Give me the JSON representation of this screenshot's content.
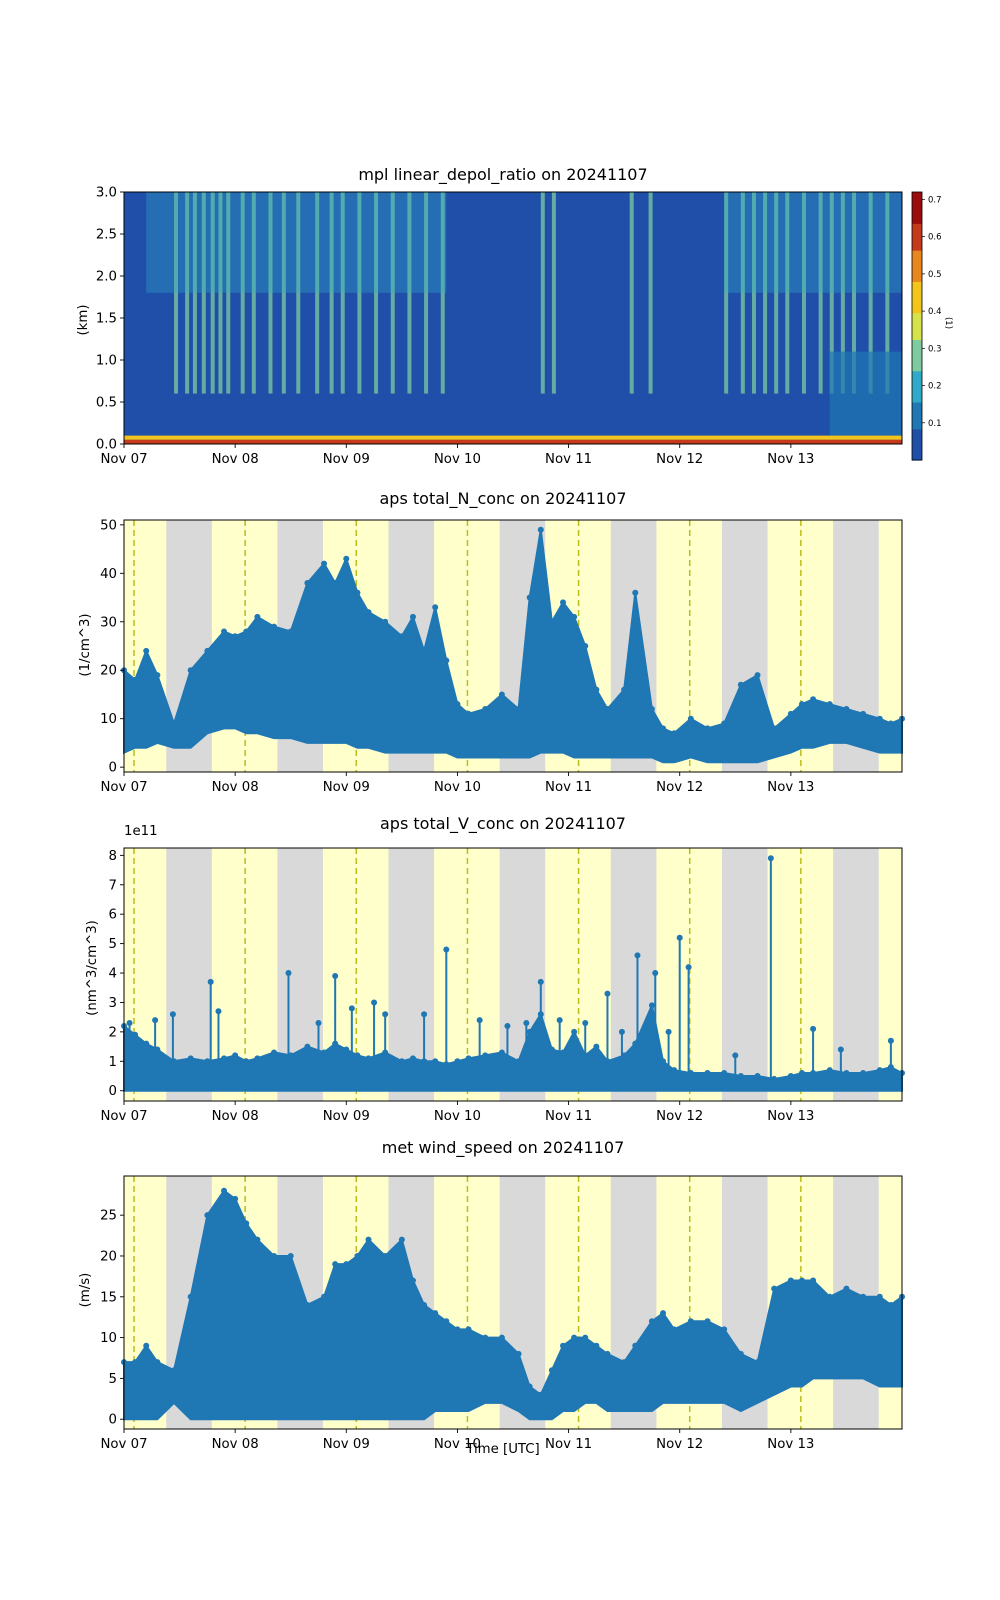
{
  "figure": {
    "xlabel": "Time [UTC]",
    "x_ticks": [
      "Nov 07",
      "Nov 08",
      "Nov 09",
      "Nov 10",
      "Nov 11",
      "Nov 12",
      "Nov 13"
    ]
  },
  "chart_data": [
    {
      "type": "heatmap",
      "title": "mpl linear_depol_ratio on 20241107",
      "ylabel": "(km)",
      "xlim_days": [
        0,
        7
      ],
      "ylim": [
        0,
        3.0
      ],
      "y_ticks": [
        "0.0",
        "0.5",
        "1.0",
        "1.5",
        "2.0",
        "2.5",
        "3.0"
      ],
      "colorbar": {
        "label": "(1)",
        "ticks": [
          "0.1",
          "0.2",
          "0.3",
          "0.4",
          "0.5",
          "0.6",
          "0.7"
        ],
        "range": [
          0,
          0.72
        ],
        "colormap": [
          "#1f4fa8",
          "#1f77b4",
          "#31a9c9",
          "#7ecba0",
          "#d4e34a",
          "#f2c41c",
          "#e8871e",
          "#c53a1a",
          "#9b0d0d"
        ]
      },
      "surface_band_km": [
        0,
        0.1
      ],
      "background_value": 0.06,
      "noisy_column_days": [
        0.45,
        0.55,
        0.62,
        0.7,
        0.78,
        0.85,
        0.92,
        1.05,
        1.15,
        1.3,
        1.42,
        1.55,
        1.72,
        1.85,
        1.95,
        2.1,
        2.25,
        2.4,
        2.55,
        2.7,
        2.85,
        3.75,
        3.85,
        4.55,
        4.72,
        5.4,
        5.55,
        5.65,
        5.75,
        5.85,
        5.95,
        6.1,
        6.25,
        6.35,
        6.45,
        6.55,
        6.7,
        6.85
      ]
    },
    {
      "type": "scatter",
      "title": "aps total_N_conc on 20241107",
      "ylabel": "(1/cm^3)",
      "ylim": [
        -1,
        51
      ],
      "y_ticks": [
        "0",
        "10",
        "20",
        "30",
        "40",
        "50"
      ],
      "series_color": "#1f77b4",
      "x_days": [
        0,
        0.1,
        0.2,
        0.3,
        0.45,
        0.6,
        0.75,
        0.9,
        1.0,
        1.1,
        1.2,
        1.35,
        1.5,
        1.65,
        1.8,
        1.9,
        2.0,
        2.1,
        2.2,
        2.35,
        2.5,
        2.6,
        2.7,
        2.8,
        2.9,
        3.0,
        3.1,
        3.25,
        3.4,
        3.55,
        3.65,
        3.75,
        3.85,
        3.95,
        4.05,
        4.15,
        4.25,
        4.35,
        4.5,
        4.6,
        4.75,
        4.85,
        4.95,
        5.1,
        5.25,
        5.4,
        5.55,
        5.7,
        5.85,
        6.0,
        6.1,
        6.2,
        6.35,
        6.5,
        6.65,
        6.8,
        6.9,
        7.0
      ],
      "y_upper": [
        20,
        18,
        24,
        19,
        9,
        20,
        24,
        28,
        27,
        28,
        31,
        29,
        28,
        38,
        42,
        38,
        43,
        36,
        32,
        30,
        27,
        31,
        24,
        33,
        22,
        13,
        11,
        12,
        15,
        12,
        35,
        49,
        30,
        34,
        31,
        25,
        16,
        12,
        16,
        36,
        12,
        8,
        7,
        10,
        8,
        9,
        17,
        19,
        8,
        11,
        13,
        14,
        13,
        12,
        11,
        10,
        9,
        10
      ],
      "y_lower": [
        3,
        4,
        4,
        5,
        4,
        4,
        7,
        8,
        8,
        7,
        7,
        6,
        6,
        5,
        5,
        5,
        5,
        4,
        4,
        3,
        3,
        3,
        3,
        3,
        3,
        2,
        2,
        2,
        2,
        2,
        2,
        3,
        3,
        3,
        2,
        2,
        2,
        2,
        2,
        2,
        2,
        1,
        1,
        2,
        1,
        1,
        1,
        1,
        2,
        3,
        4,
        4,
        5,
        5,
        4,
        3,
        3,
        3
      ]
    },
    {
      "type": "scatter",
      "title": "aps total_V_conc on 20241107",
      "ylabel": "(nm^3/cm^3)",
      "y_scale_label": "1e11",
      "ylim": [
        -0.35,
        8.25
      ],
      "y_ticks": [
        "0",
        "1",
        "2",
        "3",
        "4",
        "5",
        "6",
        "7",
        "8"
      ],
      "series_color": "#1f77b4",
      "x_days": [
        0,
        0.1,
        0.2,
        0.3,
        0.45,
        0.6,
        0.75,
        0.9,
        1.0,
        1.1,
        1.2,
        1.35,
        1.5,
        1.65,
        1.8,
        1.9,
        2.0,
        2.1,
        2.2,
        2.35,
        2.5,
        2.6,
        2.7,
        2.8,
        2.9,
        3.0,
        3.1,
        3.25,
        3.4,
        3.55,
        3.65,
        3.75,
        3.85,
        3.95,
        4.05,
        4.15,
        4.25,
        4.35,
        4.5,
        4.6,
        4.75,
        4.85,
        4.95,
        5.1,
        5.25,
        5.4,
        5.55,
        5.7,
        5.85,
        6.0,
        6.1,
        6.2,
        6.35,
        6.5,
        6.65,
        6.8,
        6.9,
        7.0
      ],
      "y_upper": [
        2.2,
        1.9,
        1.6,
        1.4,
        1.0,
        1.1,
        1.0,
        1.1,
        1.2,
        1.0,
        1.1,
        1.3,
        1.2,
        1.5,
        1.3,
        1.6,
        1.4,
        1.2,
        1.1,
        1.3,
        1.0,
        1.1,
        1.0,
        1.0,
        0.9,
        1.0,
        1.1,
        1.2,
        1.3,
        1.0,
        2.0,
        2.6,
        1.4,
        1.3,
        2.0,
        1.2,
        1.5,
        1.0,
        1.2,
        1.6,
        2.9,
        1.0,
        0.7,
        0.6,
        0.6,
        0.6,
        0.5,
        0.5,
        0.4,
        0.5,
        0.6,
        0.6,
        0.7,
        0.6,
        0.6,
        0.7,
        0.8,
        0.6
      ],
      "y_lower": [
        0,
        0,
        0,
        0,
        0,
        0,
        0,
        0,
        0,
        0,
        0,
        0,
        0,
        0,
        0,
        0,
        0,
        0,
        0,
        0,
        0,
        0,
        0,
        0,
        0,
        0,
        0,
        0,
        0,
        0,
        0,
        0,
        0,
        0,
        0,
        0,
        0,
        0,
        0,
        0,
        0,
        0,
        0,
        0,
        0,
        0,
        0,
        0,
        0,
        0,
        0,
        0,
        0,
        0,
        0,
        0,
        0,
        0
      ],
      "spikes": [
        {
          "x": 0.05,
          "y": 2.3
        },
        {
          "x": 0.28,
          "y": 2.4
        },
        {
          "x": 0.44,
          "y": 2.6
        },
        {
          "x": 0.78,
          "y": 3.7
        },
        {
          "x": 0.85,
          "y": 2.7
        },
        {
          "x": 1.48,
          "y": 4.0
        },
        {
          "x": 1.75,
          "y": 2.3
        },
        {
          "x": 1.9,
          "y": 3.9
        },
        {
          "x": 2.05,
          "y": 2.8
        },
        {
          "x": 2.25,
          "y": 3.0
        },
        {
          "x": 2.35,
          "y": 2.6
        },
        {
          "x": 2.7,
          "y": 2.6
        },
        {
          "x": 2.9,
          "y": 4.8
        },
        {
          "x": 3.2,
          "y": 2.4
        },
        {
          "x": 3.45,
          "y": 2.2
        },
        {
          "x": 3.62,
          "y": 2.3
        },
        {
          "x": 3.75,
          "y": 3.7
        },
        {
          "x": 3.92,
          "y": 2.4
        },
        {
          "x": 4.15,
          "y": 2.3
        },
        {
          "x": 4.35,
          "y": 3.3
        },
        {
          "x": 4.48,
          "y": 2.0
        },
        {
          "x": 4.62,
          "y": 4.6
        },
        {
          "x": 4.78,
          "y": 4.0
        },
        {
          "x": 4.9,
          "y": 2.0
        },
        {
          "x": 5.0,
          "y": 5.2
        },
        {
          "x": 5.08,
          "y": 4.2
        },
        {
          "x": 5.5,
          "y": 1.2
        },
        {
          "x": 5.82,
          "y": 7.9
        },
        {
          "x": 6.2,
          "y": 2.1
        },
        {
          "x": 6.45,
          "y": 1.4
        },
        {
          "x": 6.9,
          "y": 1.7
        }
      ]
    },
    {
      "type": "scatter",
      "title": "met wind_speed on 20241107",
      "ylabel": "(m/s)",
      "xlabel": "Time [UTC]",
      "ylim": [
        -1.2,
        29.8
      ],
      "y_ticks": [
        "0",
        "5",
        "10",
        "15",
        "20",
        "25"
      ],
      "series_color": "#1f77b4",
      "x_days": [
        0,
        0.1,
        0.2,
        0.3,
        0.45,
        0.6,
        0.75,
        0.9,
        1.0,
        1.1,
        1.2,
        1.35,
        1.5,
        1.65,
        1.8,
        1.9,
        2.0,
        2.1,
        2.2,
        2.35,
        2.5,
        2.6,
        2.7,
        2.8,
        2.9,
        3.0,
        3.1,
        3.25,
        3.4,
        3.55,
        3.65,
        3.75,
        3.85,
        3.95,
        4.05,
        4.15,
        4.25,
        4.35,
        4.5,
        4.6,
        4.75,
        4.85,
        4.95,
        5.1,
        5.25,
        5.4,
        5.55,
        5.7,
        5.85,
        6.0,
        6.1,
        6.2,
        6.35,
        6.5,
        6.65,
        6.8,
        6.9,
        7.0
      ],
      "y_upper": [
        7,
        7,
        9,
        7,
        6,
        15,
        25,
        28,
        27,
        24,
        22,
        20,
        20,
        14,
        15,
        19,
        19,
        20,
        22,
        20,
        22,
        17,
        14,
        13,
        12,
        11,
        11,
        10,
        10,
        8,
        4,
        3,
        6,
        9,
        10,
        10,
        9,
        8,
        7,
        9,
        12,
        13,
        11,
        12,
        12,
        11,
        8,
        7,
        16,
        17,
        17,
        17,
        15,
        16,
        15,
        15,
        14,
        15
      ],
      "y_lower": [
        0,
        0,
        0,
        0,
        2,
        0,
        0,
        0,
        0,
        0,
        0,
        0,
        0,
        0,
        0,
        0,
        0,
        0,
        0,
        0,
        0,
        0,
        0,
        1,
        1,
        1,
        1,
        2,
        2,
        1,
        0,
        0,
        0,
        1,
        1,
        2,
        2,
        1,
        1,
        1,
        1,
        2,
        2,
        2,
        2,
        2,
        1,
        2,
        3,
        4,
        4,
        5,
        5,
        5,
        5,
        4,
        4,
        4
      ]
    }
  ],
  "shading": {
    "night_color": "#d9d9d9",
    "day_color": "#ffffcc",
    "noon_line_color": "#bcbc1a",
    "night_bands_days": [
      [
        0.38,
        0.79
      ],
      [
        1.38,
        1.79
      ],
      [
        2.38,
        2.79
      ],
      [
        3.38,
        3.79
      ],
      [
        4.38,
        4.79
      ],
      [
        5.38,
        5.79
      ],
      [
        6.38,
        6.79
      ]
    ],
    "noon_lines_days": [
      0.09,
      1.09,
      2.09,
      3.09,
      4.09,
      5.09,
      6.09
    ]
  }
}
